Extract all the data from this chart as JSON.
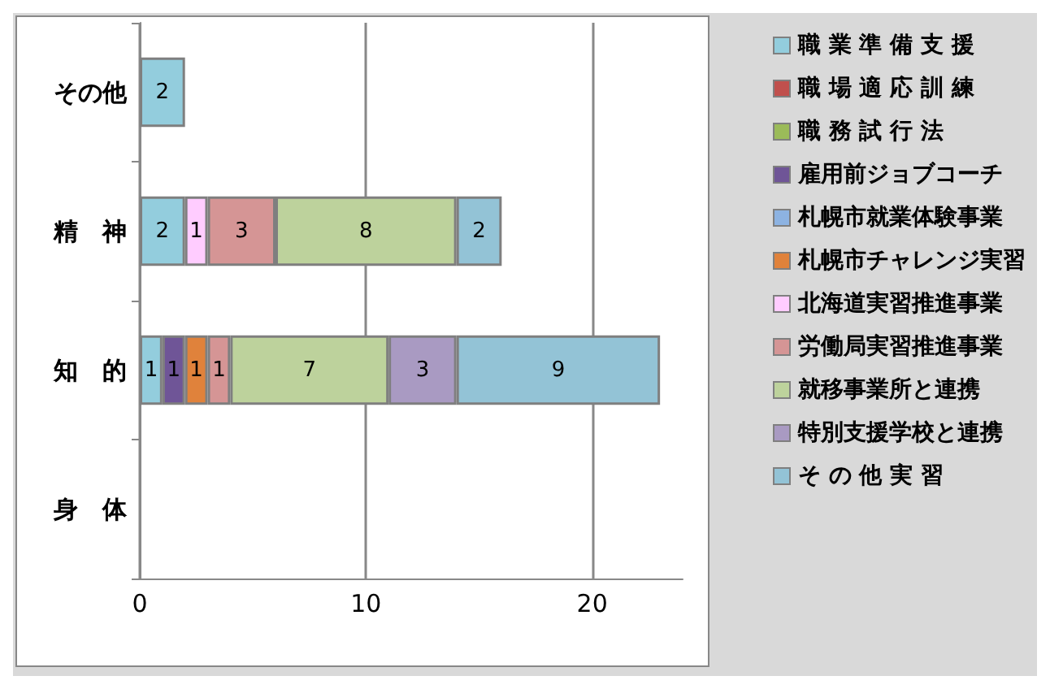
{
  "chart_data": {
    "type": "bar",
    "orientation": "horizontal",
    "stacked": true,
    "data_labels": true,
    "grid": "x",
    "legend": "right",
    "categories": [
      "その他",
      "精　神",
      "知　的",
      "身　体"
    ],
    "xlim": [
      0,
      24
    ],
    "xticks": [
      0,
      10,
      20
    ],
    "series": [
      {
        "name": "職 業 準 備 支 援",
        "color": "#93cddd",
        "values": [
          2,
          2,
          1,
          null
        ]
      },
      {
        "name": "職 場 適 応 訓 練",
        "color": "#c0504d",
        "values": [
          null,
          null,
          null,
          null
        ]
      },
      {
        "name": "職 務 試 行 法",
        "color": "#9bbb59",
        "values": [
          null,
          null,
          null,
          null
        ]
      },
      {
        "name": "雇用前ジョブコーチ",
        "color": "#6f5597",
        "values": [
          null,
          null,
          1,
          null
        ]
      },
      {
        "name": "札幌市就業体験事業",
        "color": "#8db3e2",
        "values": [
          null,
          null,
          null,
          null
        ]
      },
      {
        "name": "札幌市チャレンジ実習",
        "color": "#e0823b",
        "values": [
          null,
          null,
          1,
          null
        ]
      },
      {
        "name": "北海道実習推進事業",
        "color": "#ffccff",
        "values": [
          null,
          1,
          null,
          null
        ]
      },
      {
        "name": "労働局実習推進事業",
        "color": "#d59595",
        "values": [
          null,
          3,
          1,
          null
        ]
      },
      {
        "name": "就移事業所と連携",
        "color": "#bdd29c",
        "values": [
          null,
          8,
          7,
          null
        ]
      },
      {
        "name": "特別支援学校と連携",
        "color": "#a99ac2",
        "values": [
          null,
          null,
          3,
          null
        ]
      },
      {
        "name": "そ の 他 実 習",
        "color": "#93c3d6",
        "values": [
          null,
          2,
          9,
          null
        ]
      }
    ]
  }
}
